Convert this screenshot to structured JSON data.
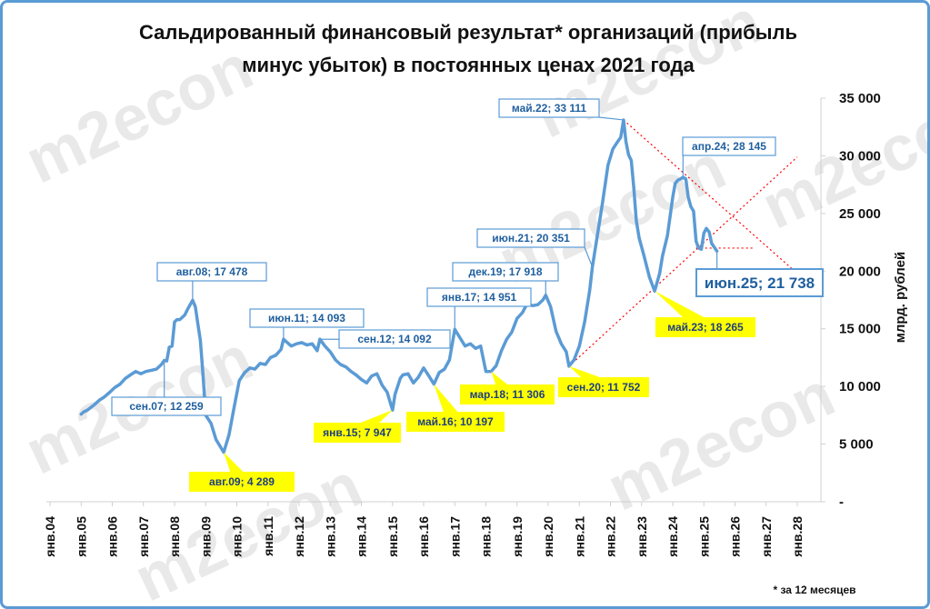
{
  "chart_data": {
    "type": "line",
    "title_lines": [
      "Сальдированный финансовый результат* организаций (прибыль",
      "минус убыток) в постоянных ценах 2021 года"
    ],
    "ylabel": "млрд. рублей",
    "footnote": "* за 12 месяцев",
    "watermark": "m2econ",
    "ylim": [
      0,
      35000
    ],
    "yticks": [
      {
        "value": 0,
        "label": "-"
      },
      {
        "value": 5000,
        "label": "5 000"
      },
      {
        "value": 10000,
        "label": "10 000"
      },
      {
        "value": 15000,
        "label": "15 000"
      },
      {
        "value": 20000,
        "label": "20 000"
      },
      {
        "value": 25000,
        "label": "25 000"
      },
      {
        "value": 30000,
        "label": "30 000"
      },
      {
        "value": 35000,
        "label": "35 000"
      }
    ],
    "xlim": [
      2004.0,
      2028.0
    ],
    "xticks": [
      {
        "value": 2004,
        "label": "янв.04"
      },
      {
        "value": 2005,
        "label": "янв.05"
      },
      {
        "value": 2006,
        "label": "янв.06"
      },
      {
        "value": 2007,
        "label": "янв.07"
      },
      {
        "value": 2008,
        "label": "янв.08"
      },
      {
        "value": 2009,
        "label": "янв.09"
      },
      {
        "value": 2010,
        "label": "янв.10"
      },
      {
        "value": 2011,
        "label": "янв.11"
      },
      {
        "value": 2012,
        "label": "янв.12"
      },
      {
        "value": 2013,
        "label": "янв.13"
      },
      {
        "value": 2014,
        "label": "янв.14"
      },
      {
        "value": 2015,
        "label": "янв.15"
      },
      {
        "value": 2016,
        "label": "янв.16"
      },
      {
        "value": 2017,
        "label": "янв.17"
      },
      {
        "value": 2018,
        "label": "янв.18"
      },
      {
        "value": 2019,
        "label": "янв.19"
      },
      {
        "value": 2020,
        "label": "янв.20"
      },
      {
        "value": 2021,
        "label": "янв.21"
      },
      {
        "value": 2022,
        "label": "янв.22"
      },
      {
        "value": 2023,
        "label": "янв.23"
      },
      {
        "value": 2024,
        "label": "янв.24"
      },
      {
        "value": 2025,
        "label": "янв.25"
      },
      {
        "value": 2026,
        "label": "янв.26"
      },
      {
        "value": 2027,
        "label": "янв.27"
      },
      {
        "value": 2028,
        "label": "янв.28"
      }
    ],
    "grid": false,
    "colors": {
      "line": "#5b9bd5",
      "trend": "#ff0000",
      "callout_blue_text": "#1f5f9f",
      "callout_yellow_bg": "#ffff00"
    },
    "series": [
      {
        "points": [
          [
            2005.0,
            7600
          ],
          [
            2005.08,
            7800
          ],
          [
            2005.17,
            7900
          ],
          [
            2005.25,
            8050
          ],
          [
            2005.42,
            8400
          ],
          [
            2005.58,
            8800
          ],
          [
            2005.75,
            9100
          ],
          [
            2005.92,
            9500
          ],
          [
            2006.08,
            9900
          ],
          [
            2006.25,
            10200
          ],
          [
            2006.42,
            10700
          ],
          [
            2006.58,
            11000
          ],
          [
            2006.75,
            11300
          ],
          [
            2006.92,
            11100
          ],
          [
            2007.08,
            11300
          ],
          [
            2007.25,
            11400
          ],
          [
            2007.42,
            11500
          ],
          [
            2007.58,
            11900
          ],
          [
            2007.67,
            12259
          ],
          [
            2007.75,
            12200
          ],
          [
            2007.83,
            13400
          ],
          [
            2007.92,
            13500
          ],
          [
            2008.0,
            15600
          ],
          [
            2008.08,
            15800
          ],
          [
            2008.17,
            15800
          ],
          [
            2008.25,
            16000
          ],
          [
            2008.33,
            16200
          ],
          [
            2008.42,
            16700
          ],
          [
            2008.58,
            17478
          ],
          [
            2008.67,
            16900
          ],
          [
            2008.75,
            15400
          ],
          [
            2008.83,
            14000
          ],
          [
            2008.92,
            10800
          ],
          [
            2009.0,
            7500
          ],
          [
            2009.17,
            6800
          ],
          [
            2009.33,
            5400
          ],
          [
            2009.58,
            4289
          ],
          [
            2009.75,
            5800
          ],
          [
            2009.92,
            8300
          ],
          [
            2010.08,
            10500
          ],
          [
            2010.25,
            11200
          ],
          [
            2010.42,
            11600
          ],
          [
            2010.58,
            11500
          ],
          [
            2010.75,
            12000
          ],
          [
            2010.92,
            11900
          ],
          [
            2011.08,
            12500
          ],
          [
            2011.25,
            12700
          ],
          [
            2011.42,
            13200
          ],
          [
            2011.5,
            14093
          ],
          [
            2011.58,
            13900
          ],
          [
            2011.75,
            13500
          ],
          [
            2011.92,
            13700
          ],
          [
            2012.08,
            13800
          ],
          [
            2012.25,
            13600
          ],
          [
            2012.42,
            13700
          ],
          [
            2012.58,
            13100
          ],
          [
            2012.67,
            14092
          ],
          [
            2012.83,
            13500
          ],
          [
            2013.0,
            13000
          ],
          [
            2013.17,
            12300
          ],
          [
            2013.33,
            11900
          ],
          [
            2013.5,
            11700
          ],
          [
            2013.67,
            11300
          ],
          [
            2013.83,
            11000
          ],
          [
            2014.0,
            10600
          ],
          [
            2014.17,
            10300
          ],
          [
            2014.33,
            10900
          ],
          [
            2014.5,
            11100
          ],
          [
            2014.67,
            10100
          ],
          [
            2014.83,
            9500
          ],
          [
            2015.0,
            7947
          ],
          [
            2015.08,
            9300
          ],
          [
            2015.25,
            10700
          ],
          [
            2015.33,
            11000
          ],
          [
            2015.5,
            11100
          ],
          [
            2015.67,
            10300
          ],
          [
            2015.83,
            10800
          ],
          [
            2016.0,
            11600
          ],
          [
            2016.17,
            10900
          ],
          [
            2016.33,
            10197
          ],
          [
            2016.5,
            11200
          ],
          [
            2016.67,
            11500
          ],
          [
            2016.83,
            12300
          ],
          [
            2017.0,
            14951
          ],
          [
            2017.17,
            14200
          ],
          [
            2017.33,
            13500
          ],
          [
            2017.5,
            13700
          ],
          [
            2017.67,
            13300
          ],
          [
            2017.83,
            13500
          ],
          [
            2018.0,
            11300
          ],
          [
            2018.17,
            11306
          ],
          [
            2018.33,
            11800
          ],
          [
            2018.5,
            13100
          ],
          [
            2018.67,
            14100
          ],
          [
            2018.83,
            14700
          ],
          [
            2019.0,
            15900
          ],
          [
            2019.17,
            16400
          ],
          [
            2019.33,
            17200
          ],
          [
            2019.5,
            17000
          ],
          [
            2019.67,
            17100
          ],
          [
            2019.83,
            17500
          ],
          [
            2019.92,
            17918
          ],
          [
            2020.08,
            16900
          ],
          [
            2020.25,
            14800
          ],
          [
            2020.42,
            13700
          ],
          [
            2020.58,
            13000
          ],
          [
            2020.67,
            11752
          ],
          [
            2020.83,
            12300
          ],
          [
            2021.0,
            13500
          ],
          [
            2021.17,
            15600
          ],
          [
            2021.33,
            18300
          ],
          [
            2021.42,
            20351
          ],
          [
            2021.58,
            23100
          ],
          [
            2021.75,
            26000
          ],
          [
            2021.92,
            29200
          ],
          [
            2022.08,
            30600
          ],
          [
            2022.25,
            31300
          ],
          [
            2022.33,
            31600
          ],
          [
            2022.42,
            33111
          ],
          [
            2022.5,
            31200
          ],
          [
            2022.58,
            30100
          ],
          [
            2022.67,
            29600
          ],
          [
            2022.75,
            27200
          ],
          [
            2022.83,
            24400
          ],
          [
            2022.92,
            22900
          ],
          [
            2023.08,
            21300
          ],
          [
            2023.25,
            19500
          ],
          [
            2023.42,
            18265
          ],
          [
            2023.58,
            19800
          ],
          [
            2023.67,
            21300
          ],
          [
            2023.83,
            23100
          ],
          [
            2024.0,
            26400
          ],
          [
            2024.08,
            27600
          ],
          [
            2024.17,
            27900
          ],
          [
            2024.25,
            28000
          ],
          [
            2024.33,
            28145
          ],
          [
            2024.42,
            28000
          ],
          [
            2024.5,
            26400
          ],
          [
            2024.58,
            25600
          ],
          [
            2024.67,
            25200
          ],
          [
            2024.75,
            22600
          ],
          [
            2024.83,
            22000
          ],
          [
            2024.92,
            21900
          ],
          [
            2025.0,
            23300
          ],
          [
            2025.08,
            23700
          ],
          [
            2025.17,
            23400
          ],
          [
            2025.25,
            22400
          ],
          [
            2025.42,
            21738
          ]
        ]
      }
    ],
    "trend_lines": [
      {
        "from": [
          2022.42,
          33111
        ],
        "to": [
          2028.0,
          19800
        ],
        "style": "dotted"
      },
      {
        "from": [
          2020.67,
          11752
        ],
        "to": [
          2028.0,
          29900
        ],
        "style": "dotted"
      },
      {
        "from": [
          2024.75,
          22000
        ],
        "to": [
          2026.6,
          22000
        ],
        "style": "dotted"
      }
    ],
    "annotations": [
      {
        "text": "авг.08;  17 478",
        "x": 2008.58,
        "y": 17478,
        "style": "blue"
      },
      {
        "text": "сен.07;  12 259",
        "x": 2007.67,
        "y": 12259,
        "style": "blue"
      },
      {
        "text": "авг.09;  4 289",
        "x": 2009.58,
        "y": 4289,
        "style": "yellow"
      },
      {
        "text": "июн.11;  14 093",
        "x": 2011.5,
        "y": 14093,
        "style": "blue"
      },
      {
        "text": "сен.12;  14 092",
        "x": 2012.67,
        "y": 14092,
        "style": "blue"
      },
      {
        "text": "янв.15;  7 947",
        "x": 2015.0,
        "y": 7947,
        "style": "yellow"
      },
      {
        "text": "май.16;  10 197",
        "x": 2016.33,
        "y": 10197,
        "style": "yellow"
      },
      {
        "text": "янв.17;  14 951",
        "x": 2017.0,
        "y": 14951,
        "style": "blue"
      },
      {
        "text": "мар.18;  11 306",
        "x": 2018.17,
        "y": 11306,
        "style": "yellow"
      },
      {
        "text": "дек.19;  17 918",
        "x": 2019.92,
        "y": 17918,
        "style": "blue"
      },
      {
        "text": "сен.20;  11 752",
        "x": 2020.67,
        "y": 11752,
        "style": "yellow"
      },
      {
        "text": "июн.21;  20 351",
        "x": 2021.42,
        "y": 20351,
        "style": "blue"
      },
      {
        "text": "май.22;  33 111",
        "x": 2022.42,
        "y": 33111,
        "style": "blue"
      },
      {
        "text": "май.23;  18 265",
        "x": 2023.42,
        "y": 18265,
        "style": "yellow"
      },
      {
        "text": "апр.24;  28 145",
        "x": 2024.33,
        "y": 28145,
        "style": "blue"
      },
      {
        "text": "июн.25;  21 738",
        "x": 2025.42,
        "y": 21738,
        "style": "blue-big"
      }
    ]
  }
}
